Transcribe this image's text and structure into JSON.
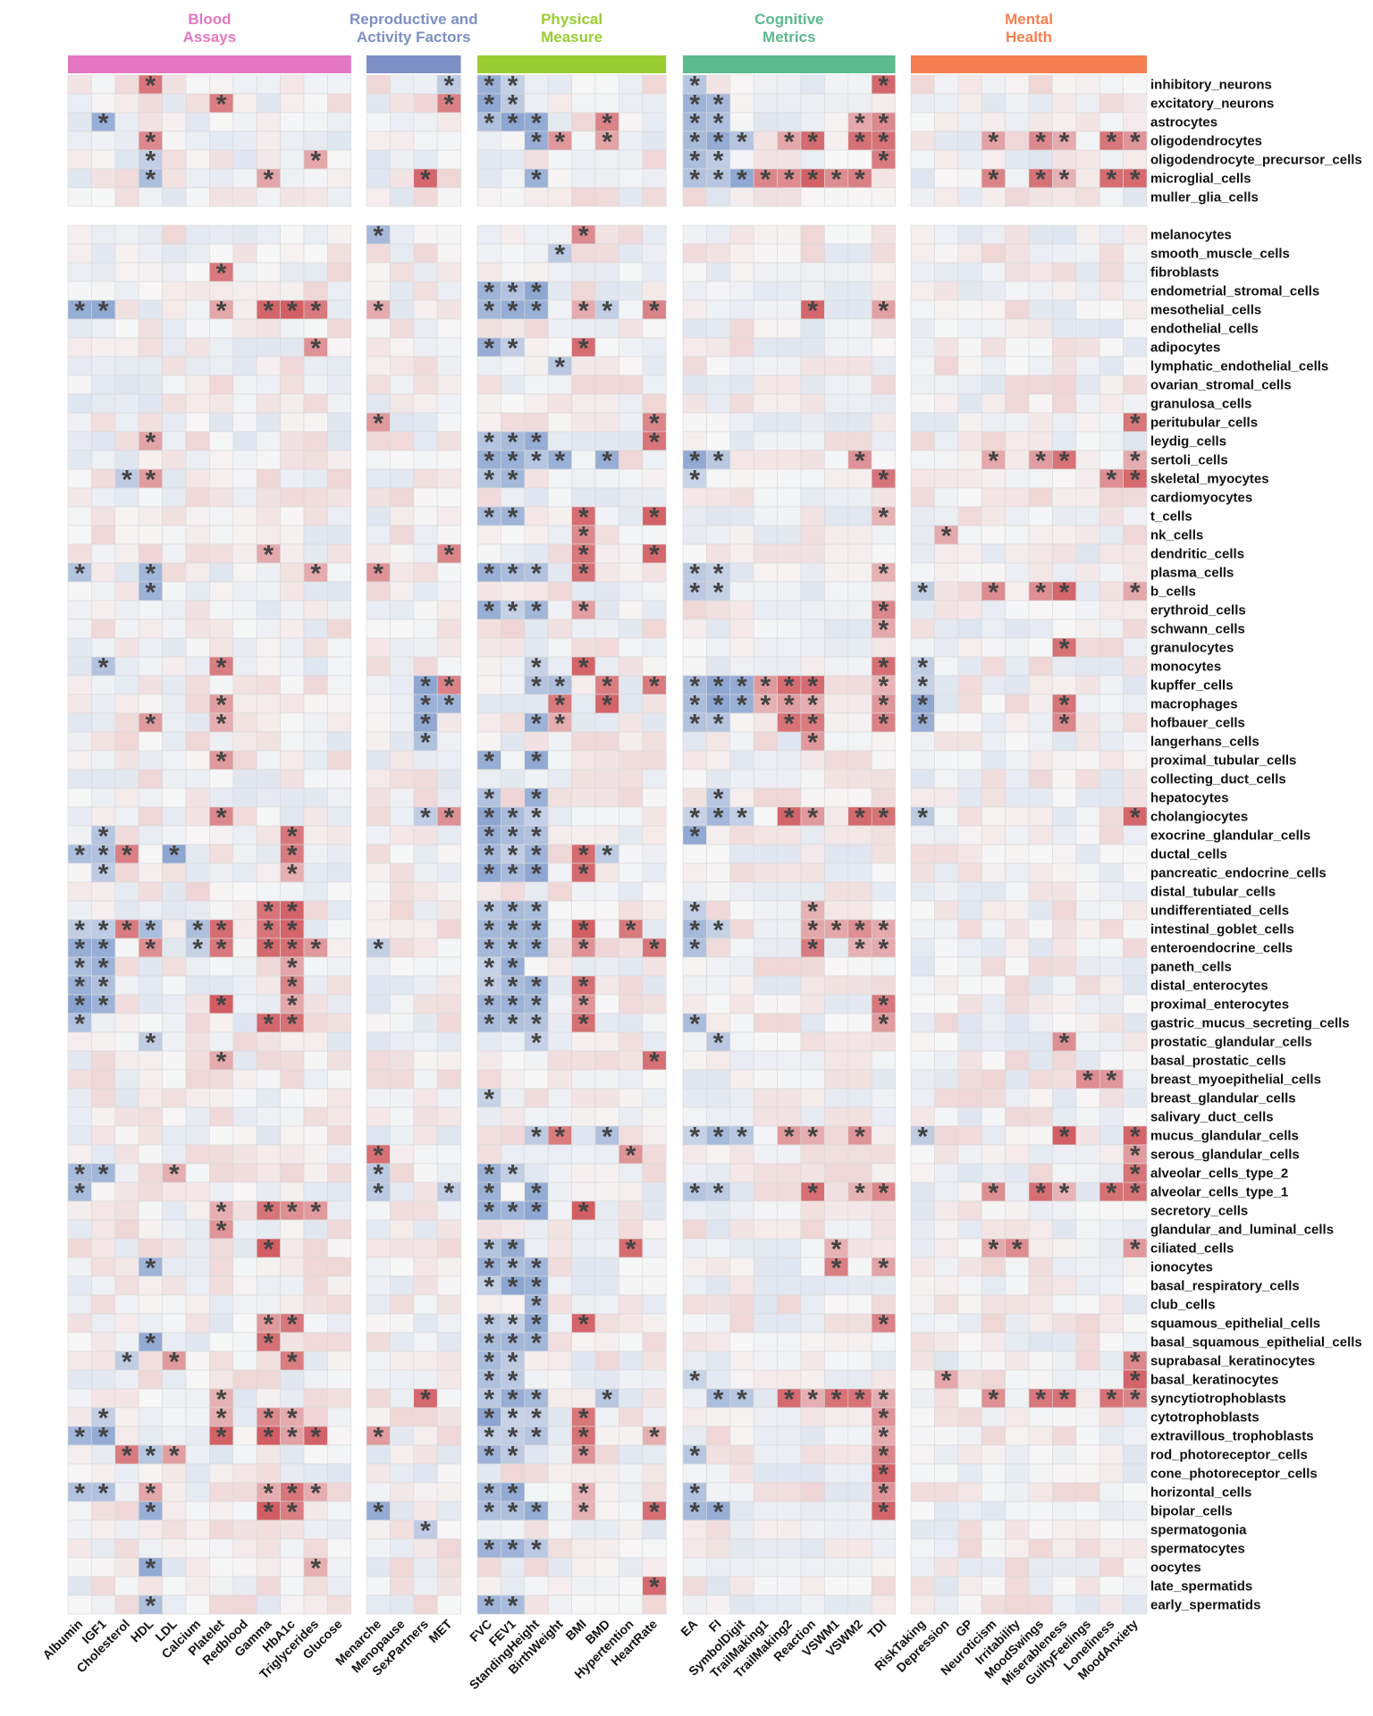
{
  "chart_data": {
    "type": "heatmap",
    "groups": [
      {
        "label": "Blood Assays",
        "color": "#E377C2",
        "columns": [
          "Albumin",
          "IGF1",
          "Cholesterol",
          "HDL",
          "LDL",
          "Calcium",
          "Platelet",
          "Redblood",
          "Gamma",
          "HbA1c",
          "Triglycerides",
          "Glucose"
        ]
      },
      {
        "label": "Reproductive and Activity Factors",
        "color": "#7E8FC5",
        "columns": [
          "Menarche",
          "Menopause",
          "SexPartners",
          "MET"
        ]
      },
      {
        "label": "Physical Measure",
        "color": "#9ACD32",
        "columns": [
          "FVC",
          "FEV1",
          "StandingHeight",
          "BirthWeight",
          "BMI",
          "BMD",
          "Hypertention",
          "HeartRate"
        ]
      },
      {
        "label": "Cognitive Metrics",
        "color": "#5BBA8E",
        "columns": [
          "EA",
          "FI",
          "SymbolDigit",
          "TrailMaking1",
          "TrailMaking2",
          "Reaction",
          "VSWM1",
          "VSWM2",
          "TDI"
        ]
      },
      {
        "label": "Mental Health",
        "color": "#F57F50",
        "columns": [
          "RiskTaking",
          "Depression",
          "GP",
          "Neuroticism",
          "Irritability",
          "MoodSwings",
          "Miserableness",
          "GuiltyFeelings",
          "Loneliness",
          "MoodAnxiety"
        ]
      }
    ],
    "row_blocks": [
      [
        "inhibitory_neurons",
        "excitatory_neurons",
        "astrocytes",
        "oligodendrocytes",
        "oligodendrocyte_precursor_cells",
        "microglial_cells",
        "muller_glia_cells"
      ],
      [
        "melanocytes",
        "smooth_muscle_cells",
        "fibroblasts",
        "endometrial_stromal_cells",
        "mesothelial_cells",
        "endothelial_cells",
        "adipocytes",
        "lymphatic_endothelial_cells",
        "ovarian_stromal_cells",
        "granulosa_cells",
        "peritubular_cells",
        "leydig_cells",
        "sertoli_cells",
        "skeletal_myocytes",
        "cardiomyocytes",
        "t_cells",
        "nk_cells",
        "dendritic_cells",
        "plasma_cells",
        "b_cells",
        "erythroid_cells",
        "schwann_cells",
        "granulocytes",
        "monocytes",
        "kupffer_cells",
        "macrophages",
        "hofbauer_cells",
        "langerhans_cells",
        "proximal_tubular_cells",
        "collecting_duct_cells",
        "hepatocytes",
        "cholangiocytes",
        "exocrine_glandular_cells",
        "ductal_cells",
        "pancreatic_endocrine_cells",
        "distal_tubular_cells",
        "undifferentiated_cells",
        "intestinal_goblet_cells",
        "enteroendocrine_cells",
        "paneth_cells",
        "distal_enterocytes",
        "proximal_enterocytes",
        "gastric_mucus_secreting_cells",
        "prostatic_glandular_cells",
        "basal_prostatic_cells",
        "breast_myoepithelial_cells",
        "breast_glandular_cells",
        "salivary_duct_cells",
        "mucus_glandular_cells",
        "serous_glandular_cells",
        "alveolar_cells_type_2",
        "alveolar_cells_type_1",
        "secretory_cells",
        "glandular_and_luminal_cells",
        "ciliated_cells",
        "ionocytes",
        "basal_respiratory_cells",
        "club_cells",
        "squamous_epithelial_cells",
        "basal_squamous_epithelial_cells",
        "suprabasal_keratinocytes",
        "basal_keratinocytes",
        "syncytiotrophoblasts",
        "cytotrophoblasts",
        "extravillous_trophoblasts",
        "rod_photoreceptor_cells",
        "cone_photoreceptor_cells",
        "horizontal_cells",
        "bipolar_cells",
        "spermatogonia",
        "spermatocytes",
        "oocytes",
        "late_spermatids",
        "early_spermatids"
      ]
    ],
    "color_scale": {
      "negative": "#6F8FC7",
      "zero": "#F7F7F7",
      "positive": "#C8363D"
    },
    "significance_marker": "*",
    "significant": {
      "inhibitory_neurons": [
        "HDL",
        "MET",
        "FVC",
        "FEV1",
        "EA",
        "TDI"
      ],
      "excitatory_neurons": [
        "Platelet",
        "MET",
        "FVC",
        "FEV1",
        "EA",
        "FI"
      ],
      "astrocytes": [
        "IGF1",
        "FVC",
        "FEV1",
        "StandingHeight",
        "BMD",
        "EA",
        "FI",
        "VSWM2",
        "TDI"
      ],
      "oligodendrocytes": [
        "HDL",
        "StandingHeight",
        "BirthWeight",
        "BMD",
        "EA",
        "FI",
        "SymbolDigit",
        "TrailMaking2",
        "Reaction",
        "VSWM2",
        "TDI",
        "Neuroticism",
        "MoodSwings",
        "Miserableness",
        "Loneliness",
        "MoodAnxiety"
      ],
      "oligodendrocyte_precursor_cells": [
        "HDL",
        "Triglycerides",
        "EA",
        "FI",
        "TDI"
      ],
      "microglial_cells": [
        "HDL",
        "Gamma",
        "SexPartners",
        "StandingHeight",
        "EA",
        "FI",
        "SymbolDigit",
        "TrailMaking1",
        "TrailMaking2",
        "Reaction",
        "VSWM1",
        "VSWM2",
        "Neuroticism",
        "MoodSwings",
        "Miserableness",
        "Loneliness",
        "MoodAnxiety"
      ],
      "muller_glia_cells": [],
      "melanocytes": [
        "Menarche",
        "BMI"
      ],
      "smooth_muscle_cells": [
        "BirthWeight"
      ],
      "fibroblasts": [
        "Platelet"
      ],
      "endometrial_stromal_cells": [
        "FVC",
        "FEV1",
        "StandingHeight"
      ],
      "mesothelial_cells": [
        "Albumin",
        "IGF1",
        "Platelet",
        "Gamma",
        "HbA1c",
        "Triglycerides",
        "Menarche",
        "FVC",
        "FEV1",
        "StandingHeight",
        "BMI",
        "BMD",
        "HeartRate",
        "Reaction",
        "TDI"
      ],
      "endothelial_cells": [],
      "adipocytes": [
        "Triglycerides",
        "FVC",
        "FEV1",
        "BMI"
      ],
      "lymphatic_endothelial_cells": [
        "BirthWeight"
      ],
      "ovarian_stromal_cells": [],
      "granulosa_cells": [],
      "peritubular_cells": [
        "Menarche",
        "HeartRate",
        "MoodAnxiety"
      ],
      "leydig_cells": [
        "HDL",
        "FVC",
        "FEV1",
        "StandingHeight",
        "HeartRate"
      ],
      "sertoli_cells": [
        "FVC",
        "FEV1",
        "StandingHeight",
        "BirthWeight",
        "BMD",
        "EA",
        "FI",
        "VSWM2",
        "Neuroticism",
        "MoodSwings",
        "Miserableness",
        "MoodAnxiety"
      ],
      "skeletal_myocytes": [
        "Cholesterol",
        "HDL",
        "FVC",
        "FEV1",
        "EA",
        "TDI",
        "Loneliness",
        "MoodAnxiety"
      ],
      "cardiomyocytes": [],
      "t_cells": [
        "FVC",
        "FEV1",
        "BMI",
        "HeartRate",
        "TDI"
      ],
      "nk_cells": [
        "BMI",
        "Depression"
      ],
      "dendritic_cells": [
        "Gamma",
        "MET",
        "BMI",
        "HeartRate"
      ],
      "plasma_cells": [
        "Albumin",
        "HDL",
        "Triglycerides",
        "Menarche",
        "FVC",
        "FEV1",
        "StandingHeight",
        "BMI",
        "EA",
        "FI",
        "TDI"
      ],
      "b_cells": [
        "HDL",
        "EA",
        "FI",
        "RiskTaking",
        "Neuroticism",
        "MoodSwings",
        "Miserableness",
        "MoodAnxiety"
      ],
      "erythroid_cells": [
        "FVC",
        "FEV1",
        "StandingHeight",
        "BMI",
        "TDI"
      ],
      "schwann_cells": [
        "TDI"
      ],
      "granulocytes": [
        "Miserableness"
      ],
      "monocytes": [
        "IGF1",
        "Platelet",
        "StandingHeight",
        "BMI",
        "TDI",
        "RiskTaking"
      ],
      "kupffer_cells": [
        "SexPartners",
        "MET",
        "StandingHeight",
        "BirthWeight",
        "BMD",
        "HeartRate",
        "EA",
        "FI",
        "SymbolDigit",
        "TrailMaking1",
        "TrailMaking2",
        "Reaction",
        "TDI",
        "RiskTaking"
      ],
      "macrophages": [
        "Platelet",
        "SexPartners",
        "MET",
        "BirthWeight",
        "BMD",
        "EA",
        "FI",
        "SymbolDigit",
        "TrailMaking1",
        "TrailMaking2",
        "Reaction",
        "TDI",
        "RiskTaking",
        "Miserableness"
      ],
      "hofbauer_cells": [
        "HDL",
        "Platelet",
        "SexPartners",
        "StandingHeight",
        "BirthWeight",
        "EA",
        "FI",
        "TrailMaking2",
        "Reaction",
        "TDI",
        "RiskTaking",
        "Miserableness"
      ],
      "langerhans_cells": [
        "SexPartners",
        "Reaction"
      ],
      "proximal_tubular_cells": [
        "Platelet",
        "FVC",
        "StandingHeight"
      ],
      "collecting_duct_cells": [],
      "hepatocytes": [
        "FVC",
        "StandingHeight",
        "FI"
      ],
      "cholangiocytes": [
        "Platelet",
        "SexPartners",
        "MET",
        "FVC",
        "FEV1",
        "StandingHeight",
        "EA",
        "FI",
        "SymbolDigit",
        "TrailMaking2",
        "Reaction",
        "VSWM2",
        "TDI",
        "RiskTaking",
        "MoodAnxiety"
      ],
      "exocrine_glandular_cells": [
        "IGF1",
        "HbA1c",
        "FVC",
        "FEV1",
        "StandingHeight",
        "EA"
      ],
      "ductal_cells": [
        "Albumin",
        "IGF1",
        "Cholesterol",
        "LDL",
        "HbA1c",
        "FVC",
        "FEV1",
        "StandingHeight",
        "BMI",
        "BMD"
      ],
      "pancreatic_endocrine_cells": [
        "IGF1",
        "HbA1c",
        "FVC",
        "FEV1",
        "StandingHeight",
        "BMI"
      ],
      "distal_tubular_cells": [],
      "undifferentiated_cells": [
        "Gamma",
        "HbA1c",
        "FVC",
        "FEV1",
        "StandingHeight",
        "EA",
        "Reaction"
      ],
      "intestinal_goblet_cells": [
        "Albumin",
        "IGF1",
        "Cholesterol",
        "HDL",
        "Calcium",
        "Platelet",
        "Gamma",
        "HbA1c",
        "FVC",
        "FEV1",
        "StandingHeight",
        "BMI",
        "Hypertention",
        "EA",
        "FI",
        "Reaction",
        "VSWM1",
        "VSWM2",
        "TDI"
      ],
      "enteroendocrine_cells": [
        "Albumin",
        "IGF1",
        "HDL",
        "Calcium",
        "Platelet",
        "Gamma",
        "HbA1c",
        "Triglycerides",
        "Menarche",
        "FVC",
        "FEV1",
        "StandingHeight",
        "BMI",
        "HeartRate",
        "EA",
        "Reaction",
        "VSWM2",
        "TDI"
      ],
      "paneth_cells": [
        "Albumin",
        "IGF1",
        "HbA1c",
        "FVC",
        "FEV1"
      ],
      "distal_enterocytes": [
        "Albumin",
        "IGF1",
        "HbA1c",
        "FVC",
        "FEV1",
        "StandingHeight",
        "BMI"
      ],
      "proximal_enterocytes": [
        "Albumin",
        "IGF1",
        "Platelet",
        "HbA1c",
        "FVC",
        "FEV1",
        "StandingHeight",
        "BMI",
        "TDI"
      ],
      "gastric_mucus_secreting_cells": [
        "Albumin",
        "Gamma",
        "HbA1c",
        "FVC",
        "FEV1",
        "StandingHeight",
        "BMI",
        "EA",
        "TDI"
      ],
      "prostatic_glandular_cells": [
        "HDL",
        "StandingHeight",
        "FI",
        "Miserableness"
      ],
      "basal_prostatic_cells": [
        "Platelet",
        "HeartRate"
      ],
      "breast_myoepithelial_cells": [
        "GuiltyFeelings",
        "Loneliness"
      ],
      "breast_glandular_cells": [
        "FVC"
      ],
      "salivary_duct_cells": [],
      "mucus_glandular_cells": [
        "StandingHeight",
        "BirthWeight",
        "BMD",
        "EA",
        "FI",
        "SymbolDigit",
        "TrailMaking2",
        "Reaction",
        "VSWM2",
        "RiskTaking",
        "Miserableness",
        "MoodAnxiety"
      ],
      "serous_glandular_cells": [
        "Menarche",
        "Hypertention",
        "MoodAnxiety"
      ],
      "alveolar_cells_type_2": [
        "Albumin",
        "IGF1",
        "LDL",
        "Menarche",
        "FVC",
        "FEV1",
        "MoodAnxiety"
      ],
      "alveolar_cells_type_1": [
        "Albumin",
        "Menarche",
        "MET",
        "FVC",
        "StandingHeight",
        "EA",
        "FI",
        "Reaction",
        "VSWM2",
        "TDI",
        "Neuroticism",
        "MoodSwings",
        "Miserableness",
        "Loneliness",
        "MoodAnxiety"
      ],
      "secretory_cells": [
        "Platelet",
        "Gamma",
        "HbA1c",
        "Triglycerides",
        "FVC",
        "FEV1",
        "StandingHeight",
        "BMI"
      ],
      "glandular_and_luminal_cells": [
        "Platelet"
      ],
      "ciliated_cells": [
        "Gamma",
        "FVC",
        "FEV1",
        "Hypertention",
        "VSWM1",
        "Neuroticism",
        "Irritability",
        "MoodAnxiety"
      ],
      "ionocytes": [
        "HDL",
        "FVC",
        "FEV1",
        "StandingHeight",
        "VSWM1",
        "TDI"
      ],
      "basal_respiratory_cells": [
        "FVC",
        "FEV1",
        "StandingHeight"
      ],
      "club_cells": [
        "StandingHeight"
      ],
      "squamous_epithelial_cells": [
        "Gamma",
        "HbA1c",
        "FVC",
        "FEV1",
        "StandingHeight",
        "BMI",
        "TDI"
      ],
      "basal_squamous_epithelial_cells": [
        "HDL",
        "Gamma",
        "FVC",
        "FEV1",
        "StandingHeight"
      ],
      "suprabasal_keratinocytes": [
        "Cholesterol",
        "LDL",
        "HbA1c",
        "FVC",
        "FEV1",
        "MoodAnxiety"
      ],
      "basal_keratinocytes": [
        "FVC",
        "FEV1",
        "EA",
        "Depression",
        "MoodAnxiety"
      ],
      "syncytiotrophoblasts": [
        "Platelet",
        "SexPartners",
        "FVC",
        "FEV1",
        "StandingHeight",
        "BMD",
        "FI",
        "SymbolDigit",
        "TrailMaking2",
        "Reaction",
        "VSWM1",
        "VSWM2",
        "TDI",
        "Neuroticism",
        "MoodSwings",
        "Miserableness",
        "Loneliness",
        "MoodAnxiety"
      ],
      "cytotrophoblasts": [
        "IGF1",
        "Platelet",
        "Gamma",
        "HbA1c",
        "FVC",
        "FEV1",
        "StandingHeight",
        "BMI",
        "TDI"
      ],
      "extravillous_trophoblasts": [
        "Albumin",
        "IGF1",
        "Platelet",
        "Gamma",
        "HbA1c",
        "Triglycerides",
        "Menarche",
        "FVC",
        "FEV1",
        "StandingHeight",
        "BMI",
        "HeartRate",
        "TDI"
      ],
      "rod_photoreceptor_cells": [
        "Cholesterol",
        "HDL",
        "LDL",
        "FVC",
        "FEV1",
        "BMI",
        "EA",
        "TDI"
      ],
      "cone_photoreceptor_cells": [
        "TDI"
      ],
      "horizontal_cells": [
        "Albumin",
        "IGF1",
        "HDL",
        "Gamma",
        "HbA1c",
        "Triglycerides",
        "FVC",
        "FEV1",
        "BMI",
        "EA",
        "TDI"
      ],
      "bipolar_cells": [
        "HDL",
        "Gamma",
        "HbA1c",
        "Menarche",
        "FVC",
        "FEV1",
        "StandingHeight",
        "BMI",
        "HeartRate",
        "EA",
        "FI",
        "TDI"
      ],
      "spermatogonia": [
        "SexPartners"
      ],
      "spermatocytes": [
        "FVC",
        "FEV1",
        "StandingHeight"
      ],
      "oocytes": [
        "HDL",
        "Triglycerides"
      ],
      "late_spermatids": [
        "HeartRate"
      ],
      "early_spermatids": [
        "HDL",
        "FVC",
        "FEV1"
      ]
    }
  }
}
